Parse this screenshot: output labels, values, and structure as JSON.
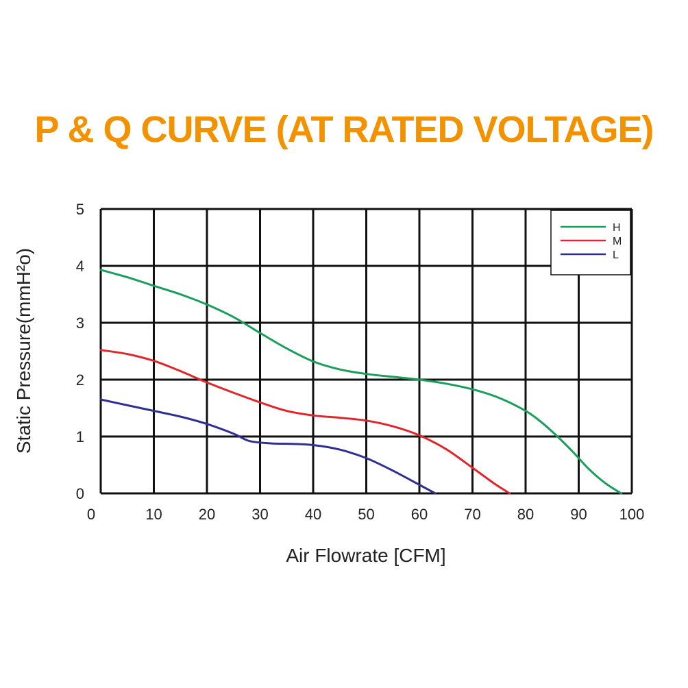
{
  "colors": {
    "title": "#f39200",
    "grid": "#111111",
    "H": "#1a9e5c",
    "M": "#e0262a",
    "L": "#2e2f8f"
  },
  "chart_data": {
    "type": "line",
    "title": "P & Q CURVE (AT RATED VOLTAGE)",
    "xlabel": "Air  Flowrate   [CFM]",
    "ylabel": "Static Pressure(mmH²o)",
    "xlim": [
      0,
      100
    ],
    "ylim": [
      0,
      5
    ],
    "xticks": [
      0,
      10,
      20,
      30,
      40,
      50,
      60,
      70,
      80,
      90,
      100
    ],
    "yticks": [
      0,
      1,
      2,
      3,
      4,
      5
    ],
    "grid": true,
    "legend_position": "top-right",
    "series": [
      {
        "name": "H",
        "x": [
          0,
          5,
          10,
          15,
          20,
          25,
          30,
          35,
          40,
          45,
          50,
          55,
          60,
          65,
          70,
          75,
          80,
          83,
          86,
          89,
          92,
          95,
          98
        ],
        "y": [
          3.93,
          3.8,
          3.65,
          3.5,
          3.32,
          3.1,
          2.82,
          2.55,
          2.32,
          2.18,
          2.1,
          2.05,
          2.0,
          1.93,
          1.83,
          1.68,
          1.45,
          1.25,
          1.0,
          0.72,
          0.42,
          0.18,
          0.0
        ]
      },
      {
        "name": "M",
        "x": [
          0,
          5,
          10,
          15,
          20,
          25,
          30,
          35,
          40,
          45,
          50,
          55,
          60,
          65,
          70,
          74,
          77
        ],
        "y": [
          2.52,
          2.45,
          2.33,
          2.15,
          1.95,
          1.77,
          1.6,
          1.45,
          1.37,
          1.33,
          1.28,
          1.18,
          1.02,
          0.78,
          0.45,
          0.18,
          0.0
        ]
      },
      {
        "name": "L",
        "x": [
          0,
          5,
          10,
          15,
          20,
          25,
          28,
          32,
          36,
          40,
          45,
          50,
          55,
          60,
          63
        ],
        "y": [
          1.65,
          1.55,
          1.45,
          1.35,
          1.22,
          1.05,
          0.92,
          0.88,
          0.87,
          0.85,
          0.77,
          0.62,
          0.4,
          0.15,
          0.0
        ]
      }
    ]
  }
}
